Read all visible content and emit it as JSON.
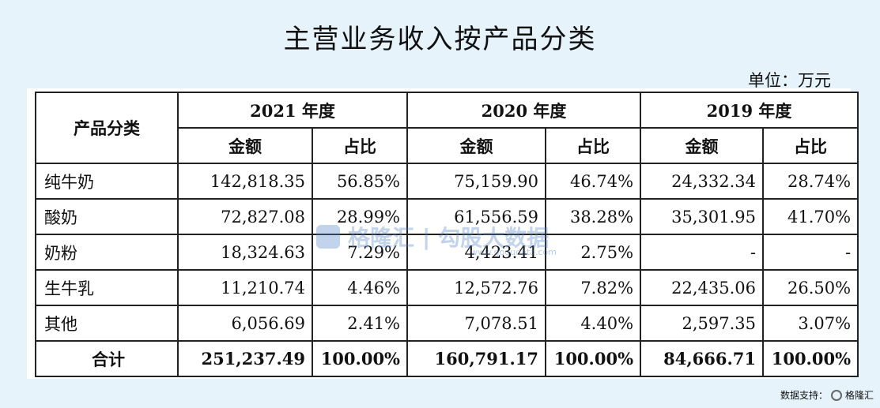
{
  "title": "主营业务收入按产品分类",
  "unit": "单位：万元",
  "header": {
    "category": "产品分类",
    "years": [
      "2021 年度",
      "2020 年度",
      "2019 年度"
    ],
    "amount": "金额",
    "ratio": "占比"
  },
  "rows": [
    {
      "name": "纯牛奶",
      "values": [
        "142,818.35",
        "56.85%",
        "75,159.90",
        "46.74%",
        "24,332.34",
        "28.74%"
      ]
    },
    {
      "name": "酸奶",
      "values": [
        "72,827.08",
        "28.99%",
        "61,556.59",
        "38.28%",
        "35,301.95",
        "41.70%"
      ]
    },
    {
      "name": "奶粉",
      "values": [
        "18,324.63",
        "7.29%",
        "4,423.41",
        "2.75%",
        "-",
        "-"
      ]
    },
    {
      "name": "生牛乳",
      "values": [
        "11,210.74",
        "4.46%",
        "12,572.76",
        "7.82%",
        "22,435.06",
        "26.50%"
      ]
    },
    {
      "name": "其他",
      "values": [
        "6,056.69",
        "2.41%",
        "7,078.51",
        "4.40%",
        "2,597.35",
        "3.07%"
      ]
    }
  ],
  "total": {
    "name": "合计",
    "values": [
      "251,237.49",
      "100.00%",
      "160,791.17",
      "100.00%",
      "84,666.71",
      "100.00%"
    ]
  },
  "watermark": {
    "brand": "格隆汇",
    "divider": "|",
    "product": "勾股大数据",
    "url": "www.gogudata.com"
  },
  "footer": {
    "text": "数据支持：",
    "brand": "格隆汇"
  },
  "icons": {
    "watermark_logo": "gelonghui-logo-icon",
    "footer_logo": "gelonghui-logo-icon"
  }
}
